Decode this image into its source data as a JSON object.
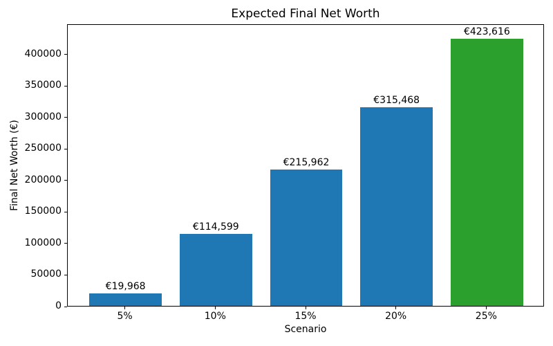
{
  "chart_data": {
    "type": "bar",
    "title": "Expected Final Net Worth",
    "xlabel": "Scenario",
    "ylabel": "Final Net Worth (€)",
    "categories": [
      "5%",
      "10%",
      "15%",
      "20%",
      "25%"
    ],
    "values": [
      19968,
      114599,
      215962,
      315468,
      423616
    ],
    "bar_labels": [
      "€19,968",
      "€114,599",
      "€215,962",
      "€315,468",
      "€423,616"
    ],
    "bar_colors": [
      "#1f77b4",
      "#1f77b4",
      "#1f77b4",
      "#1f77b4",
      "#2ca02c"
    ],
    "yticks": [
      0,
      50000,
      100000,
      150000,
      200000,
      250000,
      300000,
      350000,
      400000
    ],
    "ylim": [
      0,
      448000
    ],
    "xlim": [
      -0.64,
      4.64
    ],
    "bar_width": 0.8,
    "grid": false,
    "legend": "none"
  }
}
